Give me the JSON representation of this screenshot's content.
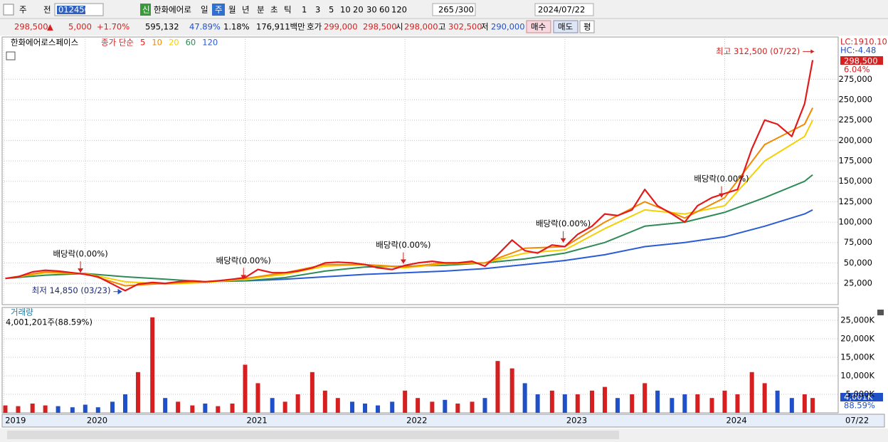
{
  "toolbar": {
    "row1": [
      "주",
      "전",
      "012450",
      "신",
      "한화에어로",
      "일",
      "주",
      "월",
      "년",
      "분",
      "초",
      "틱",
      "1",
      "3",
      "5",
      "10",
      "20",
      "30",
      "60",
      "120",
      "265",
      "/300",
      "2024/07/22"
    ],
    "row2": [
      "298,500",
      "▲",
      "5,000",
      "+1.70%",
      "595,132",
      "47.89%",
      "1.18%",
      "176,911백만",
      "호가",
      "299,000",
      "298,500",
      "시",
      "298,000",
      "고",
      "302,500",
      "저",
      "290,000",
      "매수",
      "매도",
      "평"
    ]
  },
  "chart_data": {
    "type": "stock",
    "title": "한화에어로스페이스",
    "legend_title": "종가 단순",
    "lc": "LC:1910.10",
    "hc": "HC:-4.48",
    "price_label": "298,500",
    "change_label": "6.04%",
    "x": [
      2019.5,
      2019.58,
      2019.67,
      2019.75,
      2019.83,
      2019.92,
      2020,
      2020.08,
      2020.17,
      2020.25,
      2020.33,
      2020.42,
      2020.5,
      2020.58,
      2020.67,
      2020.75,
      2020.83,
      2020.92,
      2021,
      2021.08,
      2021.17,
      2021.25,
      2021.33,
      2021.42,
      2021.5,
      2021.58,
      2021.67,
      2021.75,
      2021.83,
      2021.92,
      2022,
      2022.08,
      2022.17,
      2022.25,
      2022.33,
      2022.42,
      2022.5,
      2022.58,
      2022.67,
      2022.75,
      2022.83,
      2022.92,
      2023,
      2023.08,
      2023.17,
      2023.25,
      2023.33,
      2023.42,
      2023.5,
      2023.58,
      2023.67,
      2023.75,
      2023.83,
      2023.92,
      2024,
      2024.08,
      2024.17,
      2024.25,
      2024.33,
      2024.42,
      2024.5,
      2024.55
    ],
    "series": [
      {
        "name": "5",
        "color": "#e31a1c",
        "values": [
          31000,
          33000,
          39000,
          41000,
          40000,
          38000,
          36000,
          33000,
          24000,
          16000,
          24000,
          26000,
          25000,
          27000,
          28000,
          27000,
          28000,
          30000,
          32000,
          42000,
          38000,
          38000,
          40000,
          44000,
          50000,
          51000,
          50000,
          48000,
          44000,
          42000,
          47000,
          50000,
          52000,
          50000,
          50000,
          52000,
          46000,
          60000,
          78000,
          65000,
          62000,
          72000,
          70000,
          85000,
          95000,
          110000,
          108000,
          115000,
          140000,
          120000,
          110000,
          100000,
          120000,
          130000,
          135000,
          140000,
          190000,
          225000,
          220000,
          205000,
          245000,
          298500
        ]
      },
      {
        "name": "10",
        "color": "#f08a00",
        "x": [
          2019.5,
          2019.75,
          2020,
          2020.25,
          2020.5,
          2020.75,
          2021,
          2021.25,
          2021.5,
          2021.75,
          2022,
          2022.25,
          2022.5,
          2022.75,
          2023,
          2023.25,
          2023.5,
          2023.75,
          2024,
          2024.25,
          2024.5,
          2024.55
        ],
        "values": [
          31000,
          39000,
          37000,
          22000,
          25000,
          27000,
          31000,
          38000,
          48000,
          48000,
          45000,
          50000,
          50000,
          68000,
          70000,
          100000,
          125000,
          105000,
          130000,
          195000,
          220000,
          240000
        ]
      },
      {
        "name": "20",
        "color": "#f5d000",
        "x": [
          2019.5,
          2019.75,
          2020,
          2020.25,
          2020.5,
          2020.75,
          2021,
          2021.25,
          2021.5,
          2021.75,
          2022,
          2022.25,
          2022.5,
          2022.75,
          2023,
          2023.25,
          2023.5,
          2023.75,
          2024,
          2024.25,
          2024.5,
          2024.55
        ],
        "values": [
          31000,
          38000,
          37000,
          27000,
          24000,
          26000,
          30000,
          36000,
          46000,
          48000,
          44000,
          49000,
          50000,
          62000,
          66000,
          92000,
          115000,
          110000,
          120000,
          175000,
          205000,
          225000
        ]
      },
      {
        "name": "60",
        "color": "#2e8b57",
        "x": [
          2019.5,
          2019.75,
          2020,
          2020.25,
          2020.5,
          2020.75,
          2021,
          2021.25,
          2021.5,
          2021.75,
          2022,
          2022.25,
          2022.5,
          2022.75,
          2023,
          2023.25,
          2023.5,
          2023.75,
          2024,
          2024.25,
          2024.5,
          2024.55
        ],
        "values": [
          31000,
          35000,
          37000,
          33000,
          30000,
          27000,
          28000,
          32000,
          40000,
          45000,
          46000,
          47000,
          50000,
          55000,
          62000,
          75000,
          95000,
          100000,
          112000,
          130000,
          150000,
          158000
        ]
      },
      {
        "name": "120",
        "color": "#2a5bd7",
        "x": [
          2021,
          2021.25,
          2021.5,
          2021.75,
          2022,
          2022.25,
          2022.5,
          2022.75,
          2023,
          2023.25,
          2023.5,
          2023.75,
          2024,
          2024.25,
          2024.5,
          2024.55
        ],
        "values": [
          28000,
          30000,
          33000,
          36000,
          38000,
          40000,
          43000,
          48000,
          53000,
          60000,
          70000,
          75000,
          82000,
          95000,
          110000,
          115000
        ]
      }
    ],
    "xlim": [
      2019.48,
      2024.71
    ],
    "xticks": [
      {
        "value": 2019.49,
        "label": "2019"
      },
      2020,
      2021,
      2022,
      2023,
      2024
    ],
    "x_end_label": "07/22",
    "ylim": [
      -1100,
      326800
    ],
    "yticks": [
      {
        "value": 25000,
        "label": "25,000"
      },
      {
        "value": 50000,
        "label": "50,000"
      },
      {
        "value": 75000,
        "label": "75,000"
      },
      {
        "value": 100000,
        "label": "100,000"
      },
      {
        "value": 125000,
        "label": "125,000"
      },
      {
        "value": 150000,
        "label": "150,000"
      },
      {
        "value": 175000,
        "label": "175,000"
      },
      {
        "value": 200000,
        "label": "200,000"
      },
      {
        "value": 225000,
        "label": "225,000"
      },
      {
        "value": 250000,
        "label": "250,000"
      },
      {
        "value": 275000,
        "label": "275,000"
      }
    ],
    "grid": true,
    "high": {
      "text": "최고 312,500 (07/22)",
      "x": 2024.56,
      "y": 312500
    },
    "low": {
      "text": "최저 14,850 (03/23)",
      "x": 2020.23,
      "y": 14850
    },
    "events": [
      {
        "text": "배당락(0.00%)",
        "x": 2019.97,
        "y": 38000
      },
      {
        "text": "배당락(0.00%)",
        "x": 2020.99,
        "y": 30000
      },
      {
        "text": "배당락(0.00%)",
        "x": 2021.99,
        "y": 49000
      },
      {
        "text": "배당락(0.00%)",
        "x": 2022.99,
        "y": 75000
      },
      {
        "text": "배당락(0.00%)",
        "x": 2023.98,
        "y": 130000
      }
    ],
    "volume": {
      "name": "거래량",
      "summary": "4,001,201주(88.59%)",
      "up_color": "#d42020",
      "down_color": "#2050c8",
      "values": [
        2000,
        1800,
        2500,
        2000,
        1800,
        1500,
        2200,
        1500,
        3000,
        5000,
        11000,
        25800,
        4000,
        3000,
        2000,
        2500,
        1800,
        2500,
        13000,
        8000,
        4000,
        3000,
        5000,
        11000,
        6000,
        4000,
        3000,
        2500,
        2000,
        3000,
        6000,
        4000,
        3000,
        3500,
        2500,
        3000,
        4000,
        14000,
        12000,
        8000,
        5000,
        6000,
        5000,
        5000,
        6000,
        7000,
        4000,
        5000,
        8000,
        6000,
        4000,
        5000,
        5000,
        4000,
        6000,
        5000,
        11000,
        8000,
        6000,
        4000,
        5000,
        4001
      ],
      "ylim": [
        0,
        28460
      ],
      "yticks": [
        {
          "value": 5000,
          "label": "5,000K"
        },
        {
          "value": 10000,
          "label": "10,000K"
        },
        {
          "value": 15000,
          "label": "15,000K"
        },
        {
          "value": 20000,
          "label": "20,000K"
        },
        {
          "value": 25000,
          "label": "25,000K"
        }
      ],
      "current_label": "4,001K",
      "current_pct": "88.59%"
    }
  }
}
